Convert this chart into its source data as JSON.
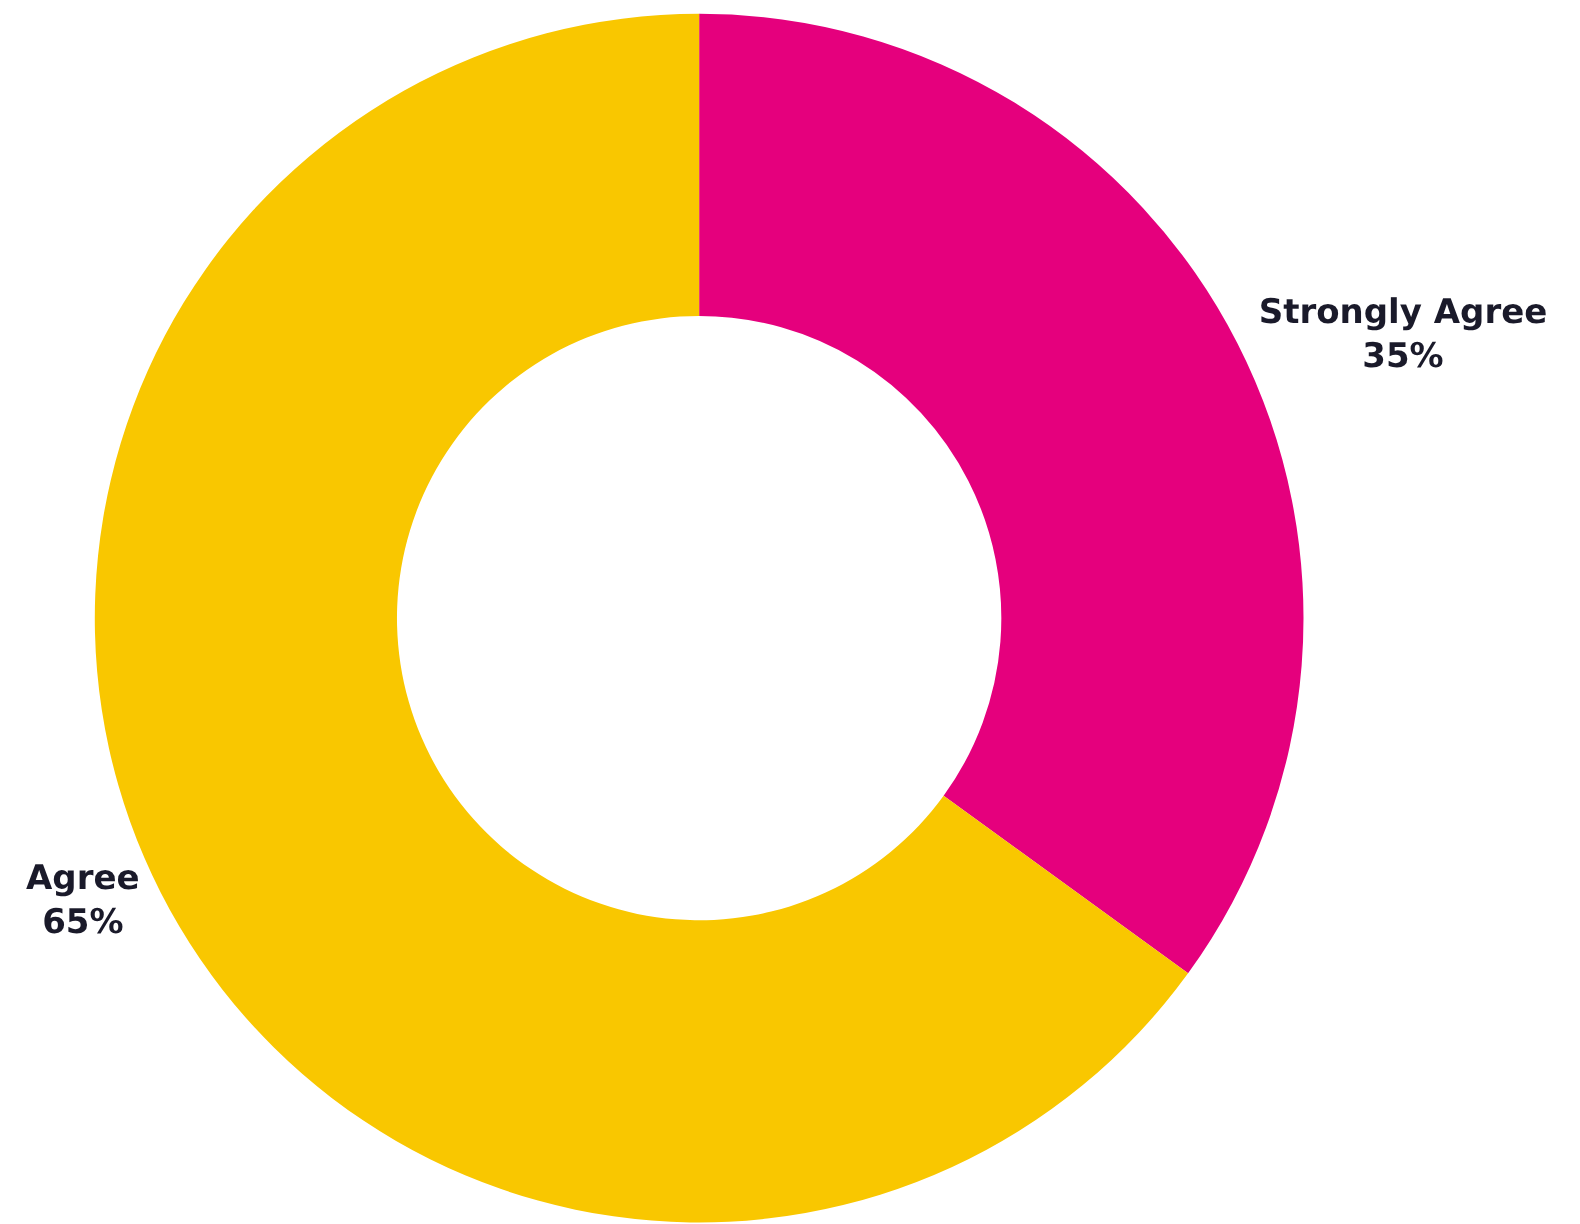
{
  "chart_data": {
    "type": "donut",
    "categories": [
      "Strongly Agree",
      "Agree"
    ],
    "values": [
      35,
      65
    ],
    "colors": [
      "#e5007d",
      "#f9c700"
    ],
    "value_labels": [
      "35%",
      "65%"
    ],
    "legend": false
  }
}
